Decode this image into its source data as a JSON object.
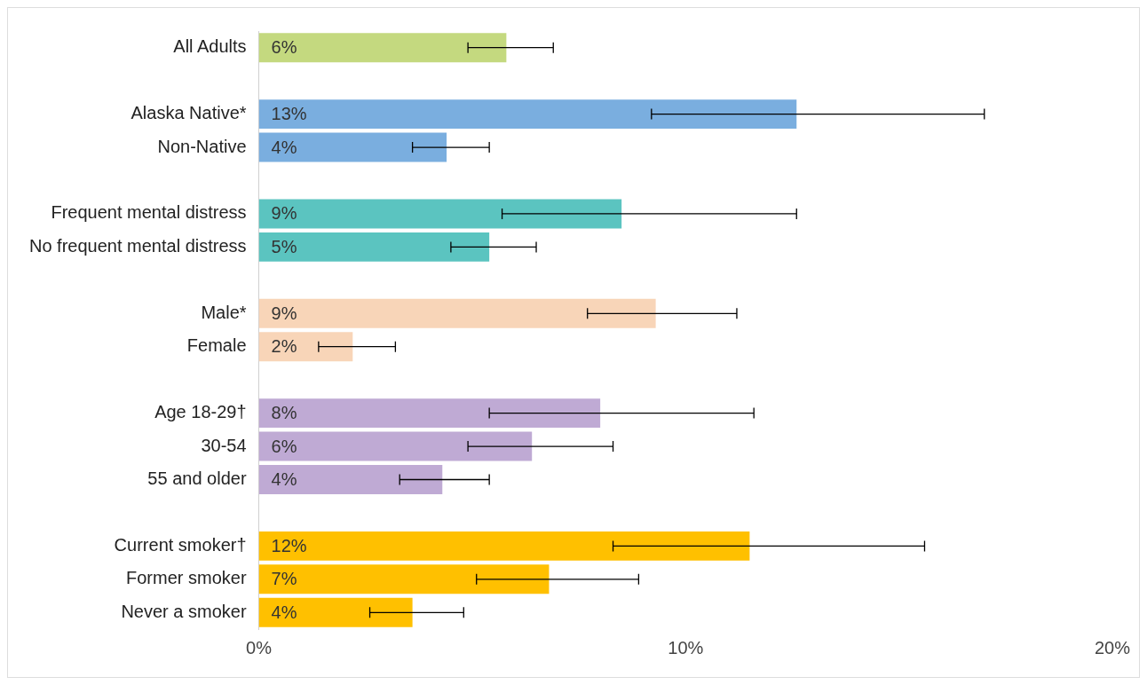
{
  "chart_data": {
    "type": "bar",
    "orientation": "horizontal",
    "categories": [
      "All Adults",
      null,
      "Alaska Native*",
      "Non-Native",
      null,
      "Frequent mental distress",
      "No frequent mental distress",
      null,
      "Male*",
      "Female",
      null,
      "Age 18-29†",
      "30-54",
      "55 and older",
      null,
      "Current smoker†",
      "Former smoker",
      "Never a smoker"
    ],
    "values": [
      5.8,
      null,
      12.6,
      4.4,
      null,
      8.5,
      5.4,
      null,
      9.3,
      2.2,
      null,
      8.0,
      6.4,
      4.3,
      null,
      11.5,
      6.8,
      3.6
    ],
    "value_labels": [
      "6%",
      null,
      "13%",
      "4%",
      null,
      "9%",
      "5%",
      null,
      "9%",
      "2%",
      null,
      "8%",
      "6%",
      "4%",
      null,
      "12%",
      "7%",
      "4%"
    ],
    "errors": [
      [
        4.9,
        6.9
      ],
      null,
      [
        9.2,
        17.0
      ],
      [
        3.6,
        5.4
      ],
      null,
      [
        5.7,
        12.6
      ],
      [
        4.5,
        6.5
      ],
      null,
      [
        7.7,
        11.2
      ],
      [
        1.4,
        3.2
      ],
      null,
      [
        5.4,
        11.6
      ],
      [
        4.9,
        8.3
      ],
      [
        3.3,
        5.4
      ],
      null,
      [
        8.3,
        15.6
      ],
      [
        5.1,
        8.9
      ],
      [
        2.6,
        4.8
      ]
    ],
    "colors": [
      "#c4d97f",
      null,
      "#7aaedf",
      "#7aaedf",
      null,
      "#5bc4c0",
      "#5bc4c0",
      null,
      "#f8d5b8",
      "#f8d5b8",
      null,
      "#bfaad4",
      "#bfaad4",
      "#bfaad4",
      null,
      "#ffc000",
      "#ffc000",
      "#ffc000"
    ],
    "xlim": [
      0,
      20
    ],
    "xticks": [
      {
        "value": 0,
        "label": "0%"
      },
      {
        "value": 10,
        "label": "10%"
      },
      {
        "value": 20,
        "label": "20%"
      }
    ]
  }
}
